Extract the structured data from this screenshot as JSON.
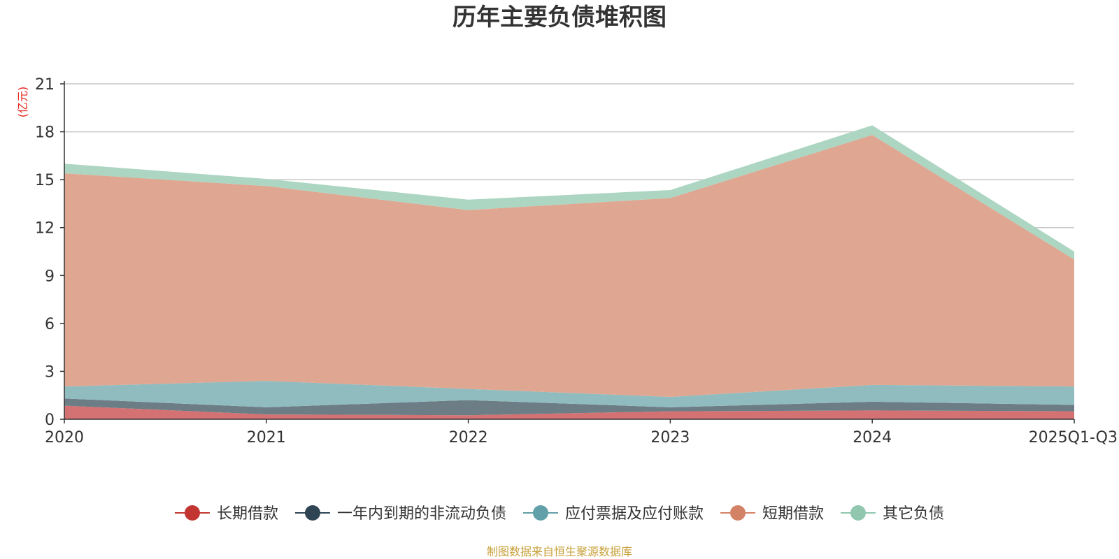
{
  "chart_data": {
    "type": "area",
    "stacked": true,
    "title": "历年主要负债堆积图",
    "ylabel": "(亿元)",
    "xlabel": "",
    "categories": [
      "2020",
      "2021",
      "2022",
      "2023",
      "2024",
      "2025Q1-Q3"
    ],
    "ylim": [
      0,
      21
    ],
    "yticks": [
      0,
      3,
      6,
      9,
      12,
      15,
      18,
      21
    ],
    "grid": true,
    "legend_position": "bottom",
    "series": [
      {
        "name": "长期借款",
        "values": [
          0.85,
          0.3,
          0.25,
          0.5,
          0.55,
          0.5
        ],
        "color": "#c23531",
        "fill": "#d47172"
      },
      {
        "name": "一年内到期的非流动负债",
        "values": [
          0.45,
          0.45,
          0.95,
          0.25,
          0.55,
          0.4
        ],
        "color": "#2f4554",
        "fill": "#6d7d86"
      },
      {
        "name": "应付票据及应付账款",
        "values": [
          0.75,
          1.65,
          0.7,
          0.65,
          1.05,
          1.15
        ],
        "color": "#61a0a8",
        "fill": "#90bcc0"
      },
      {
        "name": "短期借款",
        "values": [
          13.35,
          12.2,
          11.2,
          12.45,
          15.65,
          7.95
        ],
        "color": "#d48265",
        "fill": "#dfa791"
      },
      {
        "name": "其它负债",
        "values": [
          0.6,
          0.45,
          0.65,
          0.5,
          0.6,
          0.5
        ],
        "color": "#91c7ae",
        "fill": "#acd5c2"
      }
    ],
    "source": "制图数据来自恒生聚源数据库"
  }
}
